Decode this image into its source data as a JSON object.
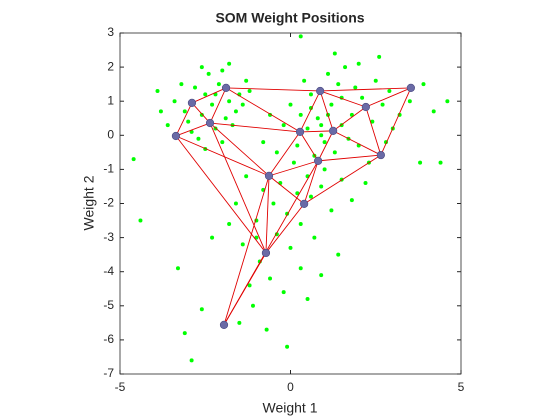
{
  "chart_data": {
    "type": "scatter",
    "title": "SOM Weight Positions",
    "xlabel": "Weight 1",
    "ylabel": "Weight 2",
    "xlim": [
      -5,
      5
    ],
    "ylim": [
      -7,
      3
    ],
    "xticks": [
      -5,
      0,
      5
    ],
    "yticks": [
      -7,
      -6,
      -5,
      -4,
      -3,
      -2,
      -1,
      0,
      1,
      2,
      3
    ],
    "series": [
      {
        "color": "#00ff00",
        "x": [
          -2.5,
          -2.1,
          -1.8,
          -2.6,
          -3.0,
          -2.2,
          -1.9,
          -2.8,
          -3.4,
          -1.5,
          -2.0,
          -2.4,
          -3.6,
          -1.6,
          -2.7,
          -3.2,
          -1.3,
          -2.3,
          -2.9,
          -1.8,
          -3.8,
          -2.0,
          -2.6,
          -1.4,
          -3.9,
          -2.2,
          -1.7,
          -3.1,
          -2.5,
          -1.2,
          0.8,
          1.2,
          0.5,
          1.5,
          1.0,
          0.3,
          1.8,
          2.1,
          0.6,
          1.4,
          0.9,
          1.7,
          0.2,
          2.4,
          2.7,
          0.0,
          -0.2,
          1.1,
          2.9,
          3.2,
          0.7,
          1.3,
          2.0,
          0.4,
          1.9,
          2.5,
          3.5,
          1.6,
          0.1,
          -0.4,
          0.5,
          1.0,
          2.3,
          2.8,
          3.0,
          3.8,
          4.2,
          3.9,
          4.6,
          1.3,
          0.3,
          2.0,
          0.9,
          1.1,
          1.5,
          0.6,
          -0.6,
          -0.8,
          4.4,
          2.6,
          -0.3,
          0.2,
          -0.5,
          0.6,
          -0.1,
          -0.8,
          0.9,
          1.2,
          -1.0,
          0.3,
          -0.4,
          0.0,
          -0.9,
          0.7,
          0.9,
          -0.6,
          -0.2,
          -1.2,
          0.3,
          -1.4,
          1.5,
          1.8,
          2.2,
          -1.6,
          -1.3,
          -1.8,
          -2.3,
          -1.1,
          -3.1,
          -2.9,
          -0.1,
          -4.4,
          -4.6,
          -1.0,
          0.5,
          -1.5,
          -2.6,
          -0.7,
          -3.3,
          1.4
        ],
        "y": [
          1.2,
          1.5,
          1.0,
          0.6,
          0.4,
          0.2,
          0.5,
          1.4,
          1.0,
          1.2,
          1.9,
          1.8,
          0.3,
          0.7,
          -0.1,
          1.5,
          1.6,
          0.9,
          0.1,
          2.1,
          0.7,
          -0.2,
          2.0,
          0.9,
          1.3,
          1.2,
          0.3,
          0.7,
          -0.4,
          1.3,
          0.5,
          0.9,
          0.2,
          0.3,
          -0.2,
          0.6,
          0.6,
          1.1,
          1.2,
          1.5,
          0.0,
          -0.1,
          -0.3,
          0.4,
          0.9,
          0.9,
          0.3,
          1.8,
          1.3,
          0.6,
          -0.6,
          -0.5,
          -0.3,
          1.6,
          1.4,
          1.6,
          1.0,
          2.0,
          -0.8,
          -0.5,
          -1.2,
          -1.0,
          -0.8,
          -0.2,
          0.2,
          -0.8,
          0.7,
          1.5,
          1.0,
          2.4,
          2.9,
          2.1,
          0.3,
          0.6,
          1.1,
          0.8,
          0.6,
          -0.2,
          -0.8,
          2.3,
          -1.4,
          -1.7,
          -2.0,
          -1.8,
          -2.3,
          -1.6,
          -1.5,
          -2.2,
          -2.5,
          -2.6,
          -2.9,
          -3.3,
          -3.7,
          -3.0,
          -4.1,
          -4.2,
          -4.6,
          -4.4,
          -3.9,
          -3.2,
          -1.3,
          -1.9,
          -1.4,
          -2.0,
          -1.2,
          -2.6,
          -3.0,
          -5.0,
          -5.8,
          -6.6,
          -6.2,
          -2.5,
          -0.7,
          -3.0,
          -4.8,
          -5.5,
          -5.1,
          -5.7,
          -3.9,
          -3.5
        ]
      },
      {
        "color": "#6a6aa6",
        "x": [
          -1.89,
          -2.89,
          -2.36,
          -3.36,
          0.28,
          0.87,
          1.25,
          2.21,
          3.53,
          2.65,
          0.81,
          -0.63,
          0.4,
          -0.72,
          -1.95
        ],
        "y": [
          1.39,
          0.95,
          0.36,
          -0.02,
          0.1,
          1.3,
          0.13,
          0.83,
          1.39,
          -0.58,
          -0.75,
          -1.19,
          -2.01,
          -3.45,
          -5.56
        ]
      }
    ],
    "edge_color": "#e00000",
    "edges": [
      [
        0,
        1
      ],
      [
        1,
        2
      ],
      [
        0,
        2
      ],
      [
        1,
        3
      ],
      [
        2,
        3
      ],
      [
        0,
        4
      ],
      [
        2,
        4
      ],
      [
        3,
        11
      ],
      [
        2,
        11
      ],
      [
        3,
        13
      ],
      [
        0,
        5
      ],
      [
        4,
        5
      ],
      [
        4,
        6
      ],
      [
        5,
        6
      ],
      [
        5,
        7
      ],
      [
        5,
        8
      ],
      [
        7,
        8
      ],
      [
        7,
        6
      ],
      [
        8,
        9
      ],
      [
        7,
        9
      ],
      [
        6,
        9
      ],
      [
        6,
        10
      ],
      [
        10,
        9
      ],
      [
        10,
        4
      ],
      [
        11,
        4
      ],
      [
        11,
        10
      ],
      [
        10,
        12
      ],
      [
        12,
        9
      ],
      [
        11,
        12
      ],
      [
        11,
        13
      ],
      [
        13,
        12
      ],
      [
        13,
        14
      ],
      [
        14,
        10
      ],
      [
        11,
        14
      ],
      [
        2,
        13
      ]
    ]
  }
}
